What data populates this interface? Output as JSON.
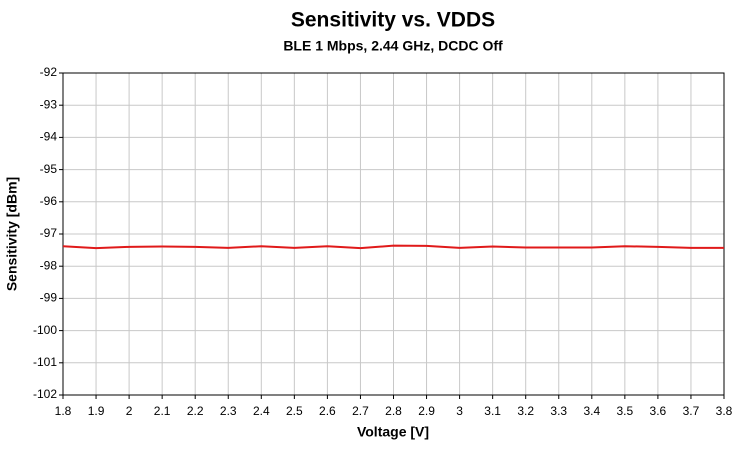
{
  "chart_data": {
    "type": "line",
    "title": "Sensitivity vs. VDDS",
    "subtitle": "BLE 1 Mbps, 2.44 GHz, DCDC Off",
    "x_label": "Voltage [V]",
    "y_label": "Sensitivity [dBm]",
    "x": [
      1.8,
      1.9,
      2,
      2.1,
      2.2,
      2.3,
      2.4,
      2.5,
      2.6,
      2.7,
      2.8,
      2.9,
      3,
      3.1,
      3.2,
      3.3,
      3.4,
      3.5,
      3.6,
      3.7,
      3.8
    ],
    "series": [
      {
        "color": "#e01a1a",
        "values": [
          -97.38,
          -97.44,
          -97.4,
          -97.39,
          -97.4,
          -97.43,
          -97.38,
          -97.43,
          -97.38,
          -97.44,
          -97.36,
          -97.37,
          -97.43,
          -97.39,
          -97.42,
          -97.42,
          -97.42,
          -97.38,
          -97.4,
          -97.43,
          -97.43
        ]
      }
    ],
    "xlim": [
      1.8,
      3.8
    ],
    "xticks": [
      1.8,
      1.9,
      2,
      2.1,
      2.2,
      2.3,
      2.4,
      2.5,
      2.6,
      2.7,
      2.8,
      2.9,
      3,
      3.1,
      3.2,
      3.3,
      3.4,
      3.5,
      3.6,
      3.7,
      3.8
    ],
    "ylim": [
      -102,
      -92
    ],
    "yticks": [
      -102,
      -101,
      -100,
      -99,
      -98,
      -97,
      -96,
      -95,
      -94,
      -93,
      -92
    ],
    "grid": true
  }
}
